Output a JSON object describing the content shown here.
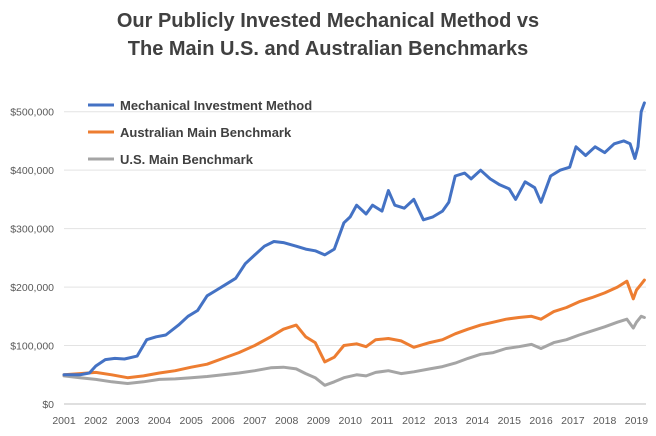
{
  "chart_data": {
    "type": "line",
    "title_lines": [
      "Our Publicly Invested Mechanical Method vs",
      "The Main U.S. and Australian Benchmarks"
    ],
    "xlabel": "",
    "ylabel": "",
    "xlim": [
      2001,
      2019.3
    ],
    "ylim": [
      0,
      520000
    ],
    "x_ticks": [
      2001,
      2002,
      2003,
      2004,
      2005,
      2006,
      2007,
      2008,
      2009,
      2010,
      2011,
      2012,
      2013,
      2014,
      2015,
      2016,
      2017,
      2018,
      2019
    ],
    "x_tick_labels": [
      "2001",
      "2002",
      "2003",
      "2004",
      "2005",
      "2006",
      "2007",
      "2008",
      "2009",
      "2010",
      "2011",
      "2012",
      "2013",
      "2014",
      "2015",
      "2016",
      "2017",
      "2018",
      "2019"
    ],
    "y_ticks": [
      0,
      100000,
      200000,
      300000,
      400000,
      500000
    ],
    "y_tick_labels": [
      "$0",
      "$100,000",
      "$200,000",
      "$300,000",
      "$400,000",
      "$500,000"
    ],
    "grid": "horizontal",
    "legend": "top-left",
    "series": [
      {
        "name": "Mechanical Investment Method",
        "color": "#4472C4",
        "x": [
          2001.0,
          2001.5,
          2001.8,
          2002.0,
          2002.3,
          2002.6,
          2002.9,
          2003.3,
          2003.6,
          2003.9,
          2004.2,
          2004.6,
          2004.9,
          2005.2,
          2005.5,
          2005.8,
          2006.1,
          2006.4,
          2006.7,
          2007.0,
          2007.3,
          2007.6,
          2007.9,
          2008.3,
          2008.6,
          2008.9,
          2009.2,
          2009.5,
          2009.8,
          2010.0,
          2010.2,
          2010.5,
          2010.7,
          2011.0,
          2011.2,
          2011.4,
          2011.7,
          2012.0,
          2012.3,
          2012.6,
          2012.9,
          2013.1,
          2013.3,
          2013.6,
          2013.8,
          2014.1,
          2014.4,
          2014.7,
          2015.0,
          2015.2,
          2015.5,
          2015.8,
          2016.0,
          2016.3,
          2016.6,
          2016.9,
          2017.1,
          2017.4,
          2017.7,
          2018.0,
          2018.3,
          2018.6,
          2018.8,
          2018.95,
          2019.05,
          2019.15,
          2019.25
        ],
        "y": [
          50000,
          50000,
          53000,
          65000,
          76000,
          78000,
          77000,
          82000,
          110000,
          115000,
          118000,
          135000,
          150000,
          160000,
          185000,
          195000,
          205000,
          215000,
          240000,
          255000,
          270000,
          278000,
          276000,
          270000,
          265000,
          262000,
          255000,
          265000,
          310000,
          320000,
          340000,
          325000,
          340000,
          330000,
          365000,
          340000,
          335000,
          350000,
          315000,
          320000,
          330000,
          345000,
          390000,
          395000,
          385000,
          400000,
          385000,
          375000,
          368000,
          350000,
          380000,
          370000,
          345000,
          390000,
          400000,
          405000,
          440000,
          425000,
          440000,
          430000,
          445000,
          450000,
          445000,
          420000,
          440000,
          500000,
          515000
        ]
      },
      {
        "name": "Australian Main Benchmark",
        "color": "#ED7D31",
        "x": [
          2001.0,
          2001.5,
          2002.0,
          2002.5,
          2003.0,
          2003.5,
          2004.0,
          2004.5,
          2005.0,
          2005.5,
          2006.0,
          2006.5,
          2007.0,
          2007.5,
          2007.9,
          2008.3,
          2008.6,
          2008.9,
          2009.2,
          2009.5,
          2009.8,
          2010.2,
          2010.5,
          2010.8,
          2011.2,
          2011.6,
          2012.0,
          2012.5,
          2012.9,
          2013.3,
          2013.7,
          2014.1,
          2014.5,
          2014.9,
          2015.3,
          2015.7,
          2016.0,
          2016.4,
          2016.8,
          2017.2,
          2017.6,
          2018.0,
          2018.4,
          2018.7,
          2018.9,
          2019.0,
          2019.15,
          2019.25
        ],
        "y": [
          50000,
          52000,
          54000,
          50000,
          45000,
          48000,
          53000,
          57000,
          63000,
          68000,
          78000,
          88000,
          100000,
          115000,
          128000,
          135000,
          115000,
          105000,
          72000,
          80000,
          100000,
          103000,
          98000,
          110000,
          112000,
          108000,
          97000,
          105000,
          110000,
          120000,
          128000,
          135000,
          140000,
          145000,
          148000,
          150000,
          145000,
          158000,
          165000,
          175000,
          182000,
          190000,
          200000,
          210000,
          180000,
          195000,
          205000,
          212000
        ]
      },
      {
        "name": "U.S. Main Benchmark",
        "color": "#A5A5A5",
        "x": [
          2001.0,
          2001.5,
          2002.0,
          2002.5,
          2003.0,
          2003.5,
          2004.0,
          2004.5,
          2005.0,
          2005.5,
          2006.0,
          2006.5,
          2007.0,
          2007.5,
          2007.9,
          2008.3,
          2008.6,
          2008.9,
          2009.2,
          2009.5,
          2009.8,
          2010.2,
          2010.5,
          2010.8,
          2011.2,
          2011.6,
          2012.0,
          2012.5,
          2012.9,
          2013.3,
          2013.7,
          2014.1,
          2014.5,
          2014.9,
          2015.3,
          2015.7,
          2016.0,
          2016.4,
          2016.8,
          2017.2,
          2017.6,
          2018.0,
          2018.4,
          2018.7,
          2018.9,
          2019.0,
          2019.15,
          2019.25
        ],
        "y": [
          48000,
          45000,
          42000,
          38000,
          35000,
          38000,
          42000,
          43000,
          45000,
          47000,
          50000,
          53000,
          57000,
          62000,
          63000,
          60000,
          52000,
          45000,
          32000,
          38000,
          45000,
          50000,
          48000,
          54000,
          57000,
          52000,
          55000,
          60000,
          64000,
          70000,
          78000,
          85000,
          88000,
          95000,
          98000,
          102000,
          95000,
          105000,
          110000,
          118000,
          125000,
          132000,
          140000,
          145000,
          130000,
          140000,
          150000,
          148000
        ]
      }
    ]
  }
}
